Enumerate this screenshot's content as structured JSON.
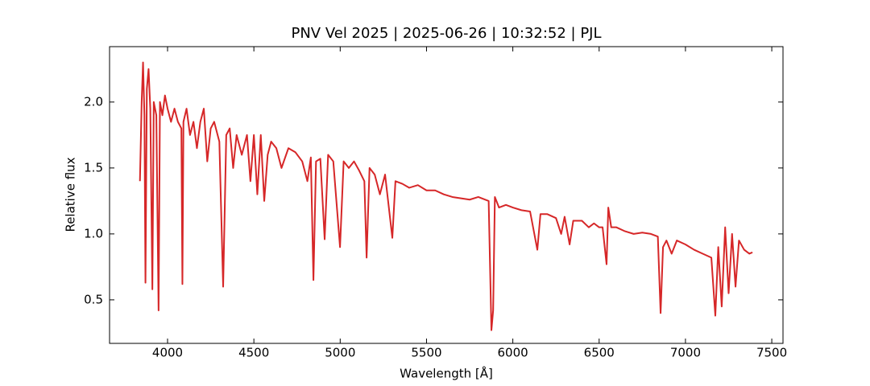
{
  "chart_data": {
    "type": "line",
    "title": "PNV Vel 2025 | 2025-06-26 | 10:32:52 | PJL",
    "xlabel": "Wavelength [Å]",
    "ylabel": "Relative flux",
    "color": "#d62728",
    "xlim": [
      3664,
      7565
    ],
    "ylim": [
      0.17,
      2.42
    ],
    "xticks": [
      4000,
      4500,
      5000,
      5500,
      6000,
      6500,
      7000,
      7500
    ],
    "yticks": [
      0.5,
      {
        "value": 1.0,
        "label": "1.0"
      },
      1.5,
      {
        "value": 2.0,
        "label": "2.0"
      }
    ],
    "x": [
      3840,
      3850,
      3858,
      3866,
      3872,
      3880,
      3890,
      3900,
      3912,
      3920,
      3935,
      3948,
      3956,
      3970,
      3985,
      4000,
      4020,
      4040,
      4060,
      4080,
      4086,
      4092,
      4110,
      4130,
      4150,
      4170,
      4190,
      4210,
      4230,
      4250,
      4270,
      4300,
      4322,
      4340,
      4360,
      4380,
      4400,
      4430,
      4460,
      4480,
      4500,
      4520,
      4540,
      4560,
      4580,
      4600,
      4630,
      4660,
      4700,
      4740,
      4780,
      4810,
      4830,
      4845,
      4860,
      4885,
      4910,
      4930,
      4960,
      4999,
      5020,
      5050,
      5080,
      5110,
      5140,
      5153,
      5170,
      5200,
      5230,
      5260,
      5302,
      5320,
      5360,
      5400,
      5450,
      5500,
      5550,
      5600,
      5650,
      5700,
      5750,
      5800,
      5860,
      5876,
      5886,
      5896,
      5920,
      5960,
      6000,
      6050,
      6100,
      6142,
      6160,
      6200,
      6250,
      6280,
      6300,
      6329,
      6350,
      6400,
      6440,
      6470,
      6500,
      6520,
      6543,
      6553,
      6570,
      6600,
      6650,
      6700,
      6750,
      6800,
      6840,
      6856,
      6870,
      6890,
      6920,
      6950,
      7000,
      7050,
      7100,
      7150,
      7173,
      7190,
      7210,
      7230,
      7250,
      7270,
      7290,
      7310,
      7340,
      7370,
      7388
    ],
    "values": [
      1.4,
      2.0,
      2.3,
      1.9,
      0.63,
      2.1,
      2.25,
      1.95,
      0.58,
      2.0,
      1.9,
      0.42,
      2.0,
      1.9,
      2.05,
      1.95,
      1.85,
      1.95,
      1.85,
      1.8,
      0.62,
      1.85,
      1.95,
      1.75,
      1.85,
      1.65,
      1.85,
      1.95,
      1.55,
      1.8,
      1.85,
      1.7,
      0.6,
      1.75,
      1.8,
      1.5,
      1.75,
      1.6,
      1.75,
      1.4,
      1.75,
      1.3,
      1.75,
      1.25,
      1.6,
      1.7,
      1.65,
      1.5,
      1.65,
      1.62,
      1.55,
      1.4,
      1.58,
      0.65,
      1.55,
      1.57,
      0.96,
      1.6,
      1.55,
      0.9,
      1.55,
      1.5,
      1.55,
      1.48,
      1.4,
      0.82,
      1.5,
      1.45,
      1.3,
      1.45,
      0.97,
      1.4,
      1.38,
      1.35,
      1.37,
      1.33,
      1.33,
      1.3,
      1.28,
      1.27,
      1.26,
      1.28,
      1.25,
      0.27,
      0.42,
      1.28,
      1.2,
      1.22,
      1.2,
      1.18,
      1.17,
      0.88,
      1.15,
      1.15,
      1.12,
      1.0,
      1.13,
      0.92,
      1.1,
      1.1,
      1.05,
      1.08,
      1.05,
      1.05,
      0.77,
      1.2,
      1.05,
      1.05,
      1.02,
      1.0,
      1.01,
      1.0,
      0.98,
      0.4,
      0.9,
      0.95,
      0.85,
      0.95,
      0.92,
      0.88,
      0.85,
      0.82,
      0.38,
      0.9,
      0.45,
      1.05,
      0.55,
      1.0,
      0.6,
      0.95,
      0.88,
      0.85,
      0.86
    ]
  }
}
